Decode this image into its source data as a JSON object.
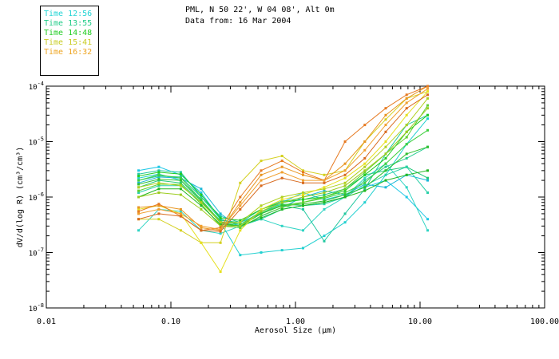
{
  "header": {
    "title": "PML, N 50 22', W 04 08', Alt 0m",
    "date_line": "Data from: 16 Mar 2004"
  },
  "legend": [
    {
      "label": "Time 12:56",
      "color": "#22d4d4"
    },
    {
      "label": "Time 13:55",
      "color": "#22cc88"
    },
    {
      "label": "Time 14:48",
      "color": "#22cc22"
    },
    {
      "label": "Time 15:41",
      "color": "#c8cc22"
    },
    {
      "label": "Time 16:32",
      "color": "#eea522"
    }
  ],
  "chart_data": {
    "type": "line",
    "title": "",
    "xlabel": "Aerosol Size (µm)",
    "ylabel": "dV/d(log R) (cm³/cm³)",
    "xscale": "log",
    "yscale": "log",
    "xlim": [
      0.01,
      100
    ],
    "ylim": [
      1e-08,
      0.0001
    ],
    "grid": false,
    "xtick_labels": [
      "0.01",
      "0.10",
      "1.00",
      "10.00",
      "100.00"
    ],
    "ytick_labels": [
      {
        "mant": "10",
        "exp": "-8"
      },
      {
        "mant": "10",
        "exp": "-7"
      },
      {
        "mant": "10",
        "exp": "-6"
      },
      {
        "mant": "10",
        "exp": "-5"
      },
      {
        "mant": "10",
        "exp": "-4"
      }
    ],
    "x": [
      0.055,
      0.08,
      0.12,
      0.175,
      0.25,
      0.36,
      0.53,
      0.78,
      1.15,
      1.7,
      2.5,
      3.6,
      5.3,
      7.8,
      11.5
    ],
    "series": [
      {
        "name": "c1",
        "color": "#1ec8e6",
        "values": [
          3e-06,
          3.5e-06,
          2.5e-06,
          1.2e-06,
          4e-07,
          3e-07,
          5e-07,
          8e-07,
          1.2e-06,
          9e-07,
          1.1e-06,
          1.5e-06,
          2e-06,
          1e-06,
          4e-07
        ]
      },
      {
        "name": "c2",
        "color": "#22d0d0",
        "values": [
          2.2e-06,
          2.6e-06,
          2e-06,
          9e-07,
          3.5e-07,
          9e-08,
          1e-07,
          1.1e-07,
          1.2e-07,
          2e-07,
          3.5e-07,
          8e-07,
          2.5e-06,
          9e-06,
          2.6e-05
        ]
      },
      {
        "name": "c3",
        "color": "#1ab8d8",
        "values": [
          1.8e-06,
          2.3e-06,
          2.2e-06,
          1.4e-06,
          5e-07,
          2.8e-07,
          4.5e-07,
          6.5e-07,
          1e-06,
          1.3e-06,
          1.1e-06,
          1.7e-06,
          1.5e-06,
          2.5e-06,
          2e-06
        ]
      },
      {
        "name": "c4",
        "color": "#30d4c4",
        "values": [
          2.5e-07,
          6e-07,
          5.5e-07,
          2.5e-07,
          2.2e-07,
          3e-07,
          4e-07,
          3e-07,
          2.5e-07,
          6e-07,
          1e-06,
          2.2e-06,
          4e-06,
          1.5e-06,
          2.5e-07
        ]
      },
      {
        "name": "t1",
        "color": "#22c8a0",
        "values": [
          2.6e-06,
          3e-06,
          2.8e-06,
          1e-06,
          4.5e-07,
          3.5e-07,
          5e-07,
          7e-07,
          6e-07,
          1.6e-07,
          5e-07,
          1.4e-06,
          6e-06,
          2e-05,
          3e-05
        ]
      },
      {
        "name": "t2",
        "color": "#28cc90",
        "values": [
          2e-06,
          2.4e-06,
          2.3e-06,
          1e-06,
          4e-07,
          3.2e-07,
          5.5e-07,
          7.5e-07,
          7e-07,
          8e-07,
          1e-06,
          2e-06,
          3.5e-06,
          5e-06,
          8e-06
        ]
      },
      {
        "name": "t3",
        "color": "#20c878",
        "values": [
          1.5e-06,
          2e-06,
          1.8e-06,
          8e-07,
          3.8e-07,
          3.5e-07,
          6e-07,
          8.5e-07,
          9e-07,
          1.1e-06,
          1.4e-06,
          2.5e-06,
          3e-06,
          3.5e-06,
          2.2e-06
        ]
      },
      {
        "name": "t4",
        "color": "#2ad0a8",
        "values": [
          1.2e-06,
          1.6e-06,
          1.6e-06,
          8e-07,
          3.5e-07,
          3e-07,
          4e-07,
          6e-07,
          7e-07,
          7.5e-07,
          1e-06,
          1.6e-06,
          2.5e-06,
          3.5e-06,
          1.2e-06
        ]
      },
      {
        "name": "g1",
        "color": "#22cc22",
        "values": [
          2.4e-06,
          2.8e-06,
          2.6e-06,
          1.1e-06,
          4.2e-07,
          3.8e-07,
          6e-07,
          8e-07,
          9e-07,
          1e-06,
          1.3e-06,
          2.5e-06,
          5e-06,
          1.5e-05,
          3e-05
        ]
      },
      {
        "name": "g2",
        "color": "#40d040",
        "values": [
          2e-06,
          2.5e-06,
          2.2e-06,
          9e-07,
          3.6e-07,
          3.2e-07,
          5.2e-07,
          7.2e-07,
          8e-07,
          9.5e-07,
          1.2e-06,
          1.8e-06,
          4e-06,
          9e-06,
          1.6e-05
        ]
      },
      {
        "name": "g3",
        "color": "#30c030",
        "values": [
          1.7e-06,
          2.1e-06,
          2e-06,
          8.5e-07,
          3.4e-07,
          3e-07,
          5e-07,
          7e-07,
          7.5e-07,
          8.5e-07,
          1.1e-06,
          1.5e-06,
          3e-06,
          6e-06,
          8e-06
        ]
      },
      {
        "name": "g4",
        "color": "#60d030",
        "values": [
          1.3e-06,
          1.7e-06,
          1.7e-06,
          7.5e-07,
          3e-07,
          2.8e-07,
          4.6e-07,
          6.5e-07,
          8e-07,
          1e-06,
          1.4e-06,
          2.8e-06,
          6e-06,
          1.2e-05,
          4.5e-05
        ]
      },
      {
        "name": "g5",
        "color": "#22b822",
        "values": [
          1e-06,
          1.4e-06,
          1.4e-06,
          7e-07,
          3.2e-07,
          3e-07,
          4.2e-07,
          6e-07,
          7e-07,
          8e-07,
          1e-06,
          1.3e-06,
          2e-06,
          2.5e-06,
          3e-06
        ]
      },
      {
        "name": "y1",
        "color": "#b0d020",
        "values": [
          1.5e-06,
          1.8e-06,
          1.6e-06,
          8e-07,
          3.5e-07,
          3.5e-07,
          7e-07,
          1e-06,
          1.2e-06,
          1.4e-06,
          1.8e-06,
          3.5e-06,
          8e-06,
          2e-05,
          6e-05
        ]
      },
      {
        "name": "y2",
        "color": "#d4d020",
        "values": [
          4e-07,
          4e-07,
          2.5e-07,
          1.5e-07,
          1.5e-07,
          1.8e-06,
          4.5e-06,
          5.5e-06,
          3e-06,
          2.5e-06,
          3e-06,
          1e-05,
          2.5e-05,
          6e-05,
          8e-05
        ]
      },
      {
        "name": "y3",
        "color": "#e6e020",
        "values": [
          6e-07,
          7e-07,
          5e-07,
          1.5e-07,
          4.5e-08,
          2.5e-07,
          6e-07,
          9e-07,
          1.1e-06,
          1.5e-06,
          2.2e-06,
          4e-06,
          1e-05,
          3e-05,
          8e-05
        ]
      },
      {
        "name": "y4",
        "color": "#9ccc20",
        "values": [
          1e-06,
          1.2e-06,
          1.1e-06,
          6e-07,
          3e-07,
          3e-07,
          5.5e-07,
          8e-07,
          1e-06,
          1.2e-06,
          1.6e-06,
          3e-06,
          6e-06,
          1.5e-05,
          4e-05
        ]
      },
      {
        "name": "o1",
        "color": "#e89622",
        "values": [
          6.5e-07,
          7e-07,
          6e-07,
          2.8e-07,
          2.5e-07,
          8e-07,
          2.5e-06,
          3.5e-06,
          2.5e-06,
          2e-06,
          4e-06,
          1e-05,
          3e-05,
          6e-05,
          0.0001
        ]
      },
      {
        "name": "o2",
        "color": "#e67a22",
        "values": [
          5.5e-07,
          7.5e-07,
          4.5e-07,
          2.5e-07,
          2.8e-07,
          1e-06,
          3e-06,
          4.5e-06,
          2.8e-06,
          2e-06,
          1e-05,
          2e-05,
          4e-05,
          7e-05,
          0.0001
        ]
      },
      {
        "name": "o3",
        "color": "#f0a030",
        "values": [
          5e-07,
          6e-07,
          5e-07,
          3e-07,
          2.6e-07,
          7e-07,
          2e-06,
          2.8e-06,
          2e-06,
          2e-06,
          3e-06,
          7e-06,
          2e-05,
          5e-05,
          9e-05
        ]
      },
      {
        "name": "o4",
        "color": "#d86a1e",
        "values": [
          4e-07,
          5e-07,
          4.5e-07,
          2.5e-07,
          2.4e-07,
          6e-07,
          1.6e-06,
          2.2e-06,
          1.8e-06,
          1.8e-06,
          2.5e-06,
          5e-06,
          1.5e-05,
          4e-05,
          7e-05
        ]
      }
    ]
  }
}
